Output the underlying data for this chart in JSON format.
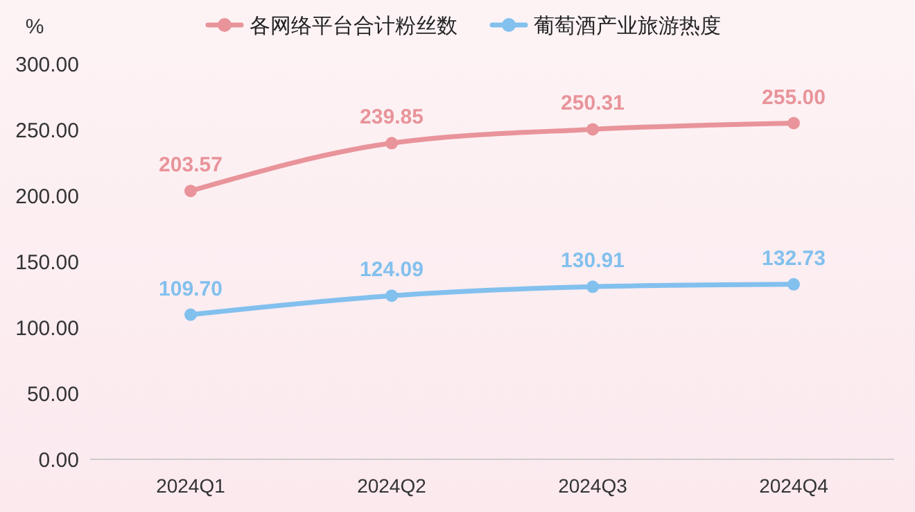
{
  "chart_data": {
    "type": "line",
    "ylabel": "%",
    "categories": [
      "2024Q1",
      "2024Q2",
      "2024Q3",
      "2024Q4"
    ],
    "series": [
      {
        "name": "各网络平台合计粉丝数",
        "color": "#e8949a",
        "values": [
          203.57,
          239.85,
          250.31,
          255.0
        ],
        "value_labels": [
          "203.57",
          "239.85",
          "250.31",
          "255.00"
        ]
      },
      {
        "name": "葡萄酒产业旅游热度",
        "color": "#82c0ee",
        "values": [
          109.7,
          124.09,
          130.91,
          132.73
        ],
        "value_labels": [
          "109.70",
          "124.09",
          "130.91",
          "132.73"
        ]
      }
    ],
    "ylim": [
      0,
      300
    ],
    "yticks": [
      {
        "value": 0,
        "label": "0.00"
      },
      {
        "value": 50,
        "label": "50.00"
      },
      {
        "value": 100,
        "label": "100.00"
      },
      {
        "value": 150,
        "label": "150.00"
      },
      {
        "value": 200,
        "label": "200.00"
      },
      {
        "value": 250,
        "label": "250.00"
      },
      {
        "value": 300,
        "label": "300.00"
      }
    ],
    "legend": "top",
    "marker": "circle",
    "line_style": "solid",
    "grid": false
  }
}
